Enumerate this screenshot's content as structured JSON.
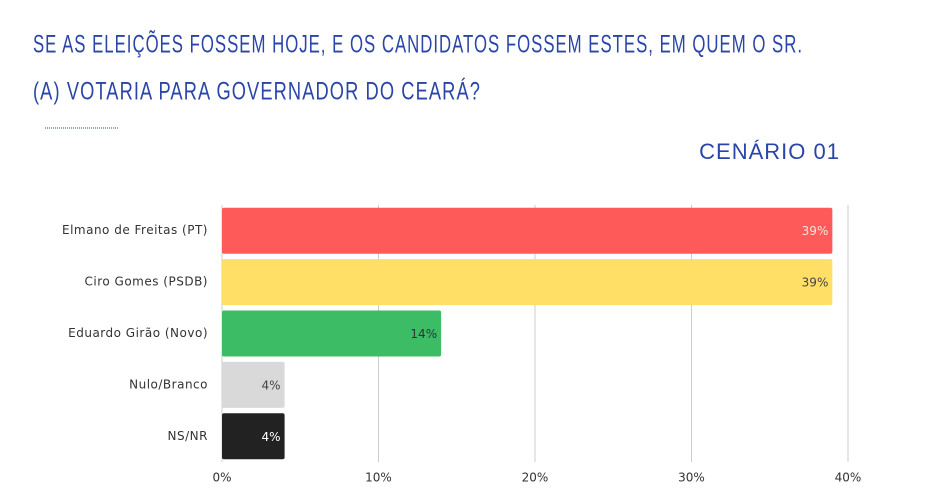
{
  "chart_data": {
    "type": "bar",
    "orientation": "horizontal",
    "title": "SE AS ELEIÇÕES FOSSEM HOJE, E OS CANDIDATOS FOSSEM ESTES, EM QUEM O SR.",
    "title_line2": "(A) VOTARIA PARA GOVERNADOR DO CEARÁ?",
    "subtitle": "CENÁRIO 01",
    "categories": [
      "Elmano de Freitas (PT)",
      "Ciro Gomes (PSDB)",
      "Eduardo Girão (Novo)",
      "Nulo/Branco",
      "NS/NR"
    ],
    "values": [
      39,
      39,
      14,
      4,
      4
    ],
    "value_labels": [
      "39%",
      "39%",
      "14%",
      "4%",
      "4%"
    ],
    "colors": [
      "#ff5a5a",
      "#ffdf66",
      "#3cbc64",
      "#d9d9d9",
      "#222222"
    ],
    "xlim": [
      0,
      40
    ],
    "xticks": [
      {
        "value": 0,
        "label": "0%"
      },
      {
        "value": 10,
        "label": "10%"
      },
      {
        "value": 20,
        "label": "20%"
      },
      {
        "value": 30,
        "label": "30%"
      },
      {
        "value": 40,
        "label": "40%"
      }
    ],
    "grid": true
  }
}
